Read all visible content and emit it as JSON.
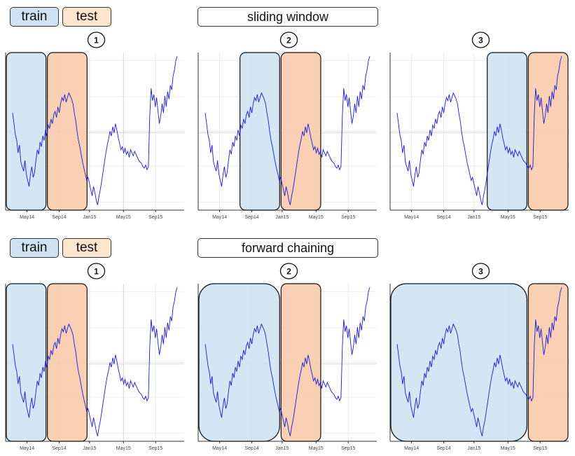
{
  "legend": {
    "train_label": "train",
    "test_label": "test"
  },
  "colors": {
    "train_fill": "#cfe2f3",
    "test_fill": "#f9cbad",
    "series_line": "#1a1ad6",
    "legend_train": "#cfe2f3",
    "legend_test": "#fce5cd"
  },
  "chart_data": {
    "type": "line",
    "x_ticks": [
      "May14",
      "Sep14",
      "Jan15",
      "May15",
      "Sep15"
    ],
    "series": [
      {
        "values": [
          0.62,
          0.55,
          0.48,
          0.44,
          0.36,
          0.41,
          0.3,
          0.27,
          0.24,
          0.31,
          0.22,
          0.18,
          0.14,
          0.22,
          0.27,
          0.2,
          0.23,
          0.31,
          0.38,
          0.35,
          0.43,
          0.4,
          0.47,
          0.44,
          0.51,
          0.47,
          0.54,
          0.52,
          0.58,
          0.55,
          0.61,
          0.63,
          0.59,
          0.66,
          0.62,
          0.68,
          0.72,
          0.7,
          0.74,
          0.69,
          0.72,
          0.75,
          0.73,
          0.71,
          0.68,
          0.62,
          0.57,
          0.5,
          0.44,
          0.4,
          0.35,
          0.3,
          0.26,
          0.22,
          0.18,
          0.2,
          0.16,
          0.12,
          0.08,
          0.14,
          0.1,
          0.05,
          0.02,
          0.08,
          0.12,
          0.18,
          0.24,
          0.3,
          0.36,
          0.41,
          0.45,
          0.5,
          0.47,
          0.53,
          0.49,
          0.55,
          0.51,
          0.46,
          0.42,
          0.38,
          0.4,
          0.36,
          0.39,
          0.35,
          0.37,
          0.33,
          0.38,
          0.36,
          0.34,
          0.37,
          0.35,
          0.33,
          0.31,
          0.3,
          0.29,
          0.27,
          0.26,
          0.28,
          0.25,
          0.27,
          0.6,
          0.78,
          0.7,
          0.74,
          0.66,
          0.72,
          0.63,
          0.55,
          0.6,
          0.68,
          0.62,
          0.73,
          0.66,
          0.76,
          0.71,
          0.8,
          0.77,
          0.86,
          0.9,
          0.96,
          0.99
        ]
      }
    ]
  },
  "sections": [
    {
      "title": "sliding window",
      "panels": [
        {
          "number": "1",
          "windows": [
            {
              "kind": "train",
              "start": 0.0,
              "end": 0.23
            },
            {
              "kind": "test",
              "start": 0.23,
              "end": 0.46
            }
          ]
        },
        {
          "number": "2",
          "windows": [
            {
              "kind": "train",
              "start": 0.23,
              "end": 0.46
            },
            {
              "kind": "test",
              "start": 0.46,
              "end": 0.69
            }
          ]
        },
        {
          "number": "3",
          "windows": [
            {
              "kind": "train",
              "start": 0.54,
              "end": 0.77
            },
            {
              "kind": "test",
              "start": 0.77,
              "end": 1.0
            }
          ]
        }
      ]
    },
    {
      "title": "forward chaining",
      "panels": [
        {
          "number": "1",
          "windows": [
            {
              "kind": "train",
              "start": 0.0,
              "end": 0.23
            },
            {
              "kind": "test",
              "start": 0.23,
              "end": 0.46
            }
          ]
        },
        {
          "number": "2",
          "windows": [
            {
              "kind": "train",
              "start": 0.0,
              "end": 0.46
            },
            {
              "kind": "test",
              "start": 0.46,
              "end": 0.69
            }
          ]
        },
        {
          "number": "3",
          "windows": [
            {
              "kind": "train",
              "start": 0.0,
              "end": 0.77
            },
            {
              "kind": "test",
              "start": 0.77,
              "end": 1.0
            }
          ]
        }
      ]
    }
  ]
}
